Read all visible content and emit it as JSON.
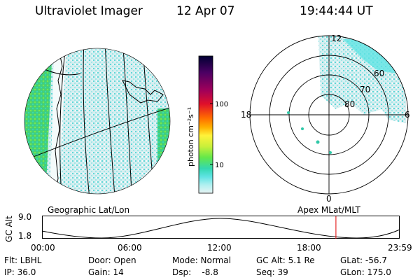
{
  "header": {
    "title": "Ultraviolet Imager",
    "date": "12 Apr 07",
    "time": "19:44:44 UT"
  },
  "colorbar": {
    "unit_label": "photon cm⁻²s⁻¹",
    "ticks": [
      "100",
      "10"
    ],
    "colors": [
      "#000033",
      "#4b0063",
      "#a0005a",
      "#e0102a",
      "#ff6a00",
      "#ffb000",
      "#fff23a",
      "#c8f03a",
      "#63e84a",
      "#33d8b0",
      "#5fe3e3",
      "#b0f0f0",
      "#e8f4f4"
    ]
  },
  "geo_panel": {
    "label": "Geographic Lat/Lon"
  },
  "polar_panel": {
    "label": "Apex MLat/MLT",
    "mlt_labels": {
      "top": "12",
      "left": "18",
      "right": "6",
      "bottom": "0"
    },
    "lat_labels": [
      "60",
      "70",
      "80"
    ]
  },
  "timeline": {
    "ylabel": "GC Alt",
    "ytop": "9.0",
    "ybottom": "1.8",
    "xticks": [
      "00:00",
      "06:00",
      "12:00",
      "18:00",
      "23:59"
    ],
    "current_time_fraction": 0.823
  },
  "info": {
    "filter": "Flt: LBHL",
    "door": "Door: Open",
    "mode": "Mode: Normal",
    "gc_alt": "GC Alt: 5.1 Re",
    "glat": "GLat: -56.7",
    "ip": "IP: 36.0",
    "gain": "Gain: 14",
    "dsp": "Dsp:    -8.8",
    "seq": "Seq: 39",
    "glon": "GLon: 175.0"
  }
}
